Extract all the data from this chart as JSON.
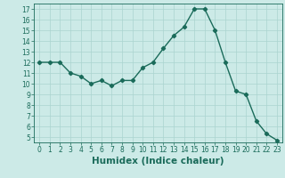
{
  "x": [
    0,
    1,
    2,
    3,
    4,
    5,
    6,
    7,
    8,
    9,
    10,
    11,
    12,
    13,
    14,
    15,
    16,
    17,
    18,
    19,
    20,
    21,
    22,
    23
  ],
  "y": [
    12,
    12,
    12,
    11,
    10.7,
    10,
    10.3,
    9.8,
    10.3,
    10.3,
    11.5,
    12,
    13.3,
    14.5,
    15.3,
    17,
    17,
    15,
    12,
    9.3,
    9,
    6.5,
    5.3,
    4.7
  ],
  "line_color": "#1a6b5a",
  "marker": "D",
  "marker_size": 2.2,
  "bg_color": "#cceae7",
  "grid_color": "#aad4cf",
  "xlabel": "Humidex (Indice chaleur)",
  "ylim": [
    4.5,
    17.5
  ],
  "xlim": [
    -0.5,
    23.5
  ],
  "yticks": [
    5,
    6,
    7,
    8,
    9,
    10,
    11,
    12,
    13,
    14,
    15,
    16,
    17
  ],
  "xticks": [
    0,
    1,
    2,
    3,
    4,
    5,
    6,
    7,
    8,
    9,
    10,
    11,
    12,
    13,
    14,
    15,
    16,
    17,
    18,
    19,
    20,
    21,
    22,
    23
  ],
  "tick_fontsize": 5.5,
  "xlabel_fontsize": 7.5,
  "line_width": 1.0
}
